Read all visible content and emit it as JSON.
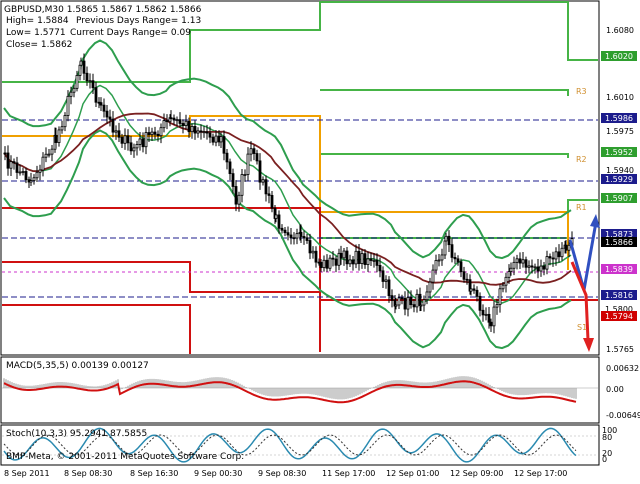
{
  "header": {
    "title": "GBPUSD,M30",
    "ohlc": "1.5865 1.5867 1.5862 1.5866",
    "high": "High= 1.5884",
    "low": "Low= 1.5771",
    "close": "Close= 1.5862",
    "prev_range": "Previous Days Range= 1.13",
    "curr_range": "Current Days Range= 0.09"
  },
  "price_axis": {
    "ticks": [
      "1.6080",
      "1.6010",
      "1.5975",
      "1.5940",
      "1.5765"
    ]
  },
  "price_labels": [
    {
      "value": "1.6020",
      "color": "#2e9e2e"
    },
    {
      "value": "1.5986",
      "color": "#1c1c8c"
    },
    {
      "value": "1.5952",
      "color": "#2e9e2e"
    },
    {
      "value": "1.5929",
      "color": "#1c1c8c"
    },
    {
      "value": "1.5907",
      "color": "#2e9e2e"
    },
    {
      "value": "1.5873",
      "color": "#1c1c8c"
    },
    {
      "value": "1.5866",
      "color": "#000000"
    },
    {
      "value": "1.5839",
      "color": "#cc33cc"
    },
    {
      "value": "1.5816",
      "color": "#1c1c8c"
    },
    {
      "value": "1.5800",
      "color": "#ffffff"
    },
    {
      "value": "1.5794",
      "color": "#d00000"
    }
  ],
  "level_tags": [
    "R3",
    "R2",
    "R1"
  ],
  "pivot_tag": "S1",
  "macd": {
    "label": "MACD(5,35,5) 0.00139 0.00127",
    "ticks": [
      "0.00632",
      "0.00",
      "-0.00649"
    ]
  },
  "stoch": {
    "label": "Stoch(10,3,3) 95.2941 87.5855",
    "ticks": [
      "100",
      "80",
      "20",
      "0"
    ]
  },
  "time_axis": {
    "labels": [
      "8 Sep 2011",
      "8 Sep 08:30",
      "8 Sep 16:30",
      "9 Sep 00:30",
      "9 Sep 08:30",
      "11 Sep 17:00",
      "12 Sep 01:00",
      "12 Sep 09:00",
      "12 Sep 17:00"
    ]
  },
  "copyright": "BMP-Meta, © 2001-2011 MetaQuotes Software Corp.",
  "colors": {
    "candle": "#000000",
    "bollinger": "#2e9e4e",
    "ma": "#7a2020",
    "resistance": "#46b446",
    "support": "#d01010",
    "pivot": "#f0a000",
    "dash": "#1c1c8c",
    "magenta": "#cc33cc",
    "arrow_up": "#3050c0",
    "arrow_down": "#e02020"
  }
}
